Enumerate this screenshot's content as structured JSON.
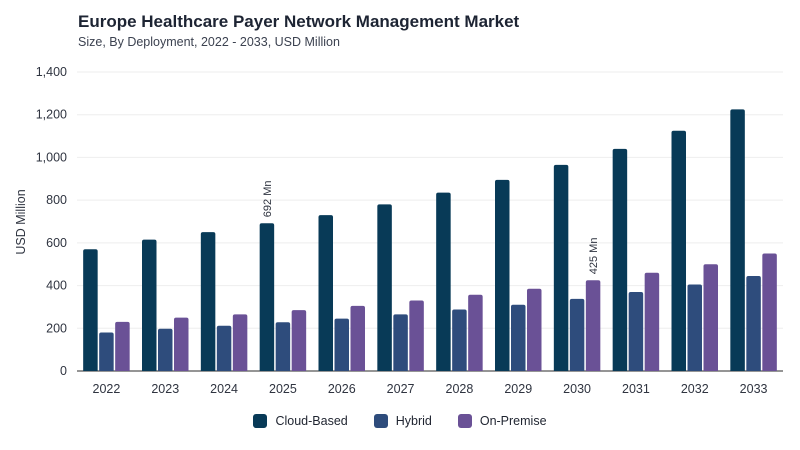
{
  "chart_data": {
    "type": "bar",
    "title": "Europe Healthcare Payer Network Management Market",
    "subtitle": "Size, By Deployment, 2022 - 2033, USD Million",
    "xlabel": "",
    "ylabel": "USD Million",
    "ylim": [
      0,
      1400
    ],
    "yticks": [
      "0",
      "200",
      "400",
      "600",
      "800",
      "1,000",
      "1,200",
      "1,400"
    ],
    "grid": true,
    "legend_position": "bottom",
    "categories": [
      "2022",
      "2023",
      "2024",
      "2025",
      "2026",
      "2027",
      "2028",
      "2029",
      "2030",
      "2031",
      "2032",
      "2033"
    ],
    "series": [
      {
        "name": "Cloud-Based",
        "color": "#083a57",
        "values": [
          570,
          615,
          650,
          692,
          730,
          780,
          835,
          895,
          965,
          1040,
          1125,
          1225
        ]
      },
      {
        "name": "Hybrid",
        "color": "#2e4c7c",
        "values": [
          180,
          198,
          212,
          228,
          245,
          265,
          288,
          310,
          338,
          370,
          405,
          445
        ]
      },
      {
        "name": "On-Premise",
        "color": "#6a5196",
        "values": [
          230,
          250,
          265,
          285,
          305,
          330,
          357,
          385,
          425,
          460,
          500,
          550
        ]
      }
    ],
    "annotations": [
      {
        "series": 0,
        "category": "2025",
        "text": "692 Mn"
      },
      {
        "series": 2,
        "category": "2030",
        "text": "425 Mn"
      }
    ]
  }
}
